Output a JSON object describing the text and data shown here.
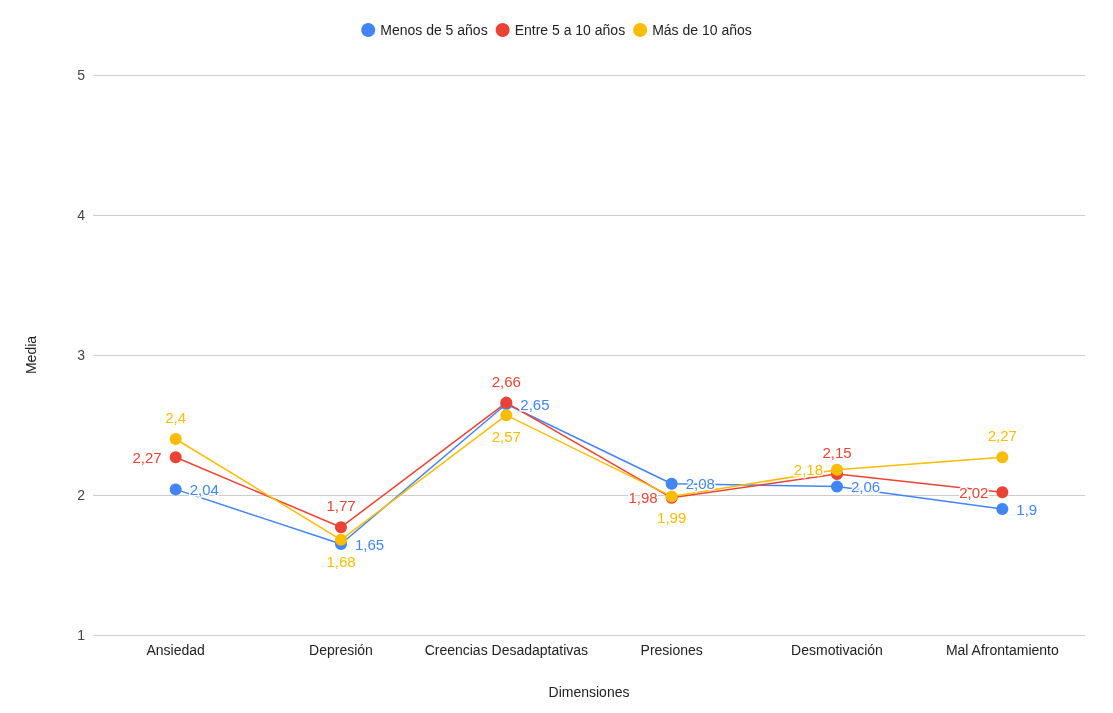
{
  "chart_data": {
    "type": "line",
    "xlabel": "Dimensiones",
    "ylabel": "Media",
    "categories": [
      "Ansiedad",
      "Depresión",
      "Creencias Desadaptativas",
      "Presiones",
      "Desmotivación",
      "Mal Afrontamiento"
    ],
    "series": [
      {
        "name": "Menos de 5 años",
        "color": "#4285f4",
        "values": [
          2.04,
          1.65,
          2.65,
          2.08,
          2.06,
          1.9
        ],
        "value_labels": [
          "2,04",
          "1,65",
          "2,65",
          "2,08",
          "2,06",
          "1,9"
        ]
      },
      {
        "name": "Entre 5 a 10 años",
        "color": "#ea4335",
        "values": [
          2.27,
          1.77,
          2.66,
          1.98,
          2.15,
          2.02
        ],
        "value_labels": [
          "2,27",
          "1,77",
          "2,66",
          "1,98",
          "2,15",
          "2,02"
        ]
      },
      {
        "name": "Más de 10 años",
        "color": "#fbbc04",
        "values": [
          2.4,
          1.68,
          2.57,
          1.99,
          2.18,
          2.27
        ],
        "value_labels": [
          "2,4",
          "1,68",
          "2,57",
          "1,99",
          "2,18",
          "2,27"
        ]
      }
    ],
    "ylim": [
      1,
      5
    ],
    "yticks": [
      1,
      2,
      3,
      4,
      5
    ],
    "grid": "y",
    "legend": "top",
    "marker": "circle",
    "line_style": "solid"
  }
}
